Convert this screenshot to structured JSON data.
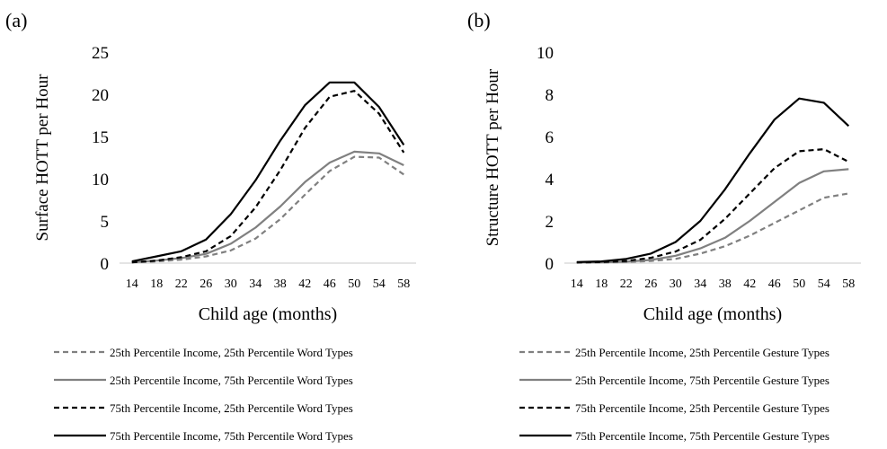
{
  "chart_data": [
    {
      "type": "line",
      "panel_label": "(a)",
      "ylabel": "Surface HOTT per Hour",
      "xlabel": "Child age (months)",
      "ylim": [
        0,
        25
      ],
      "yticks": [
        0,
        5,
        10,
        15,
        20,
        25
      ],
      "x": [
        14,
        18,
        22,
        26,
        30,
        34,
        38,
        42,
        46,
        50,
        54,
        58
      ],
      "legend_position": "bottom",
      "series": [
        {
          "name": "25th Percentile Income, 25th Percentile Word Types",
          "color": "#808080",
          "dash": "dashed",
          "values": [
            0.1,
            0.2,
            0.4,
            0.8,
            1.5,
            2.9,
            5.2,
            8.1,
            10.9,
            12.6,
            12.5,
            10.5
          ]
        },
        {
          "name": "25th Percentile Income, 75th Percentile Word Types",
          "color": "#808080",
          "dash": "solid",
          "values": [
            0.1,
            0.3,
            0.6,
            1.1,
            2.3,
            4.2,
            6.7,
            9.6,
            11.9,
            13.2,
            13.0,
            11.6
          ]
        },
        {
          "name": "75th Percentile Income, 25th Percentile Word Types",
          "color": "#000000",
          "dash": "dashed",
          "values": [
            0.1,
            0.3,
            0.7,
            1.4,
            3.2,
            6.6,
            11.0,
            16.0,
            19.7,
            20.4,
            17.7,
            13.1
          ]
        },
        {
          "name": "75th Percentile Income, 75th Percentile Word Types",
          "color": "#000000",
          "dash": "solid",
          "values": [
            0.2,
            0.8,
            1.4,
            2.8,
            5.8,
            9.8,
            14.5,
            18.7,
            21.4,
            21.4,
            18.5,
            14.0
          ]
        }
      ]
    },
    {
      "type": "line",
      "panel_label": "(b)",
      "ylabel": "Structure HOTT per Hour",
      "xlabel": "Child age (months)",
      "ylim": [
        0,
        10
      ],
      "yticks": [
        0,
        2,
        4,
        6,
        8,
        10
      ],
      "x": [
        14,
        18,
        22,
        26,
        30,
        34,
        38,
        42,
        46,
        50,
        54,
        58
      ],
      "legend_position": "bottom",
      "series": [
        {
          "name": "25th Percentile Income, 25th Percentile Gesture Types",
          "color": "#808080",
          "dash": "dashed",
          "values": [
            0.02,
            0.03,
            0.05,
            0.1,
            0.2,
            0.45,
            0.8,
            1.3,
            1.9,
            2.5,
            3.1,
            3.3
          ]
        },
        {
          "name": "25th Percentile Income, 75th Percentile Gesture Types",
          "color": "#808080",
          "dash": "solid",
          "values": [
            0.03,
            0.04,
            0.07,
            0.15,
            0.35,
            0.7,
            1.2,
            2.0,
            2.9,
            3.8,
            4.35,
            4.45
          ]
        },
        {
          "name": "75th Percentile Income, 25th Percentile Gesture Types",
          "color": "#000000",
          "dash": "dashed",
          "values": [
            0.03,
            0.05,
            0.1,
            0.25,
            0.55,
            1.1,
            2.1,
            3.3,
            4.5,
            5.3,
            5.4,
            4.8
          ]
        },
        {
          "name": "75th Percentile Income, 75th Percentile Gesture Types",
          "color": "#000000",
          "dash": "solid",
          "values": [
            0.05,
            0.08,
            0.2,
            0.45,
            1.0,
            2.0,
            3.5,
            5.2,
            6.8,
            7.8,
            7.6,
            6.5
          ]
        }
      ]
    }
  ]
}
